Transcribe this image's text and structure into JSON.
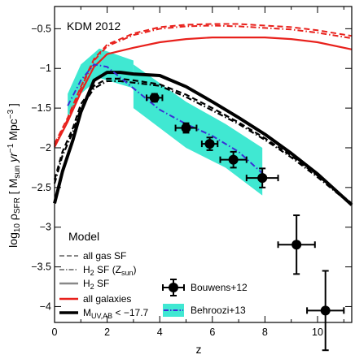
{
  "chart_data": {
    "type": "line",
    "annotation": "KDM 2012",
    "xlabel": "z",
    "ylabel": "log10 ρSFR [ Msun yr−1 Mpc−3 ]",
    "ylabel_parts": {
      "prefix": "log",
      "log_sub": "10",
      "rho": " ρ",
      "rho_sub": "SFR",
      "open": " [ M",
      "m_sub": "sun",
      "unit": " yr",
      "yr_sup": "−1",
      "mpc": " Mpc",
      "mpc_sup": "−3",
      "close": " ]"
    },
    "xlim": [
      0,
      11.3
    ],
    "ylim": [
      -4.2,
      -0.22
    ],
    "xticks": [
      0,
      2,
      4,
      6,
      8,
      10
    ],
    "xtick_labels": [
      "0",
      "2",
      "4",
      "6",
      "8",
      "10"
    ],
    "yticks": [
      -4,
      -3.5,
      -3,
      -2.5,
      -2,
      -1.5,
      -1,
      -0.5
    ],
    "ytick_labels": [
      "−4",
      "−3.5",
      "−3",
      "−2.5",
      "−2",
      "−1.5",
      "−1",
      "−0.5"
    ],
    "colors": {
      "all_galaxies": "#e8211c",
      "bright": "#000000",
      "behroozi_line": "#3a2fd6",
      "behroozi_band": "#40e8d2",
      "grey": "#888888"
    },
    "series": [
      {
        "group": "all galaxies",
        "model": "all gas SF",
        "style": "dashed",
        "x": [
          0,
          0.5,
          1,
          1.5,
          2,
          3,
          4,
          5,
          6,
          7,
          8,
          9,
          10,
          11.3
        ],
        "y": [
          -1.95,
          -1.62,
          -1.23,
          -0.88,
          -0.7,
          -0.56,
          -0.48,
          -0.45,
          -0.44,
          -0.44,
          -0.46,
          -0.48,
          -0.52,
          -0.59
        ]
      },
      {
        "group": "all galaxies",
        "model": "H2 SF (Zsun)",
        "style": "dashdot",
        "x": [
          0,
          0.5,
          1,
          1.5,
          2,
          3,
          4,
          5,
          6,
          7,
          8,
          9,
          10,
          11.3
        ],
        "y": [
          -1.97,
          -1.64,
          -1.25,
          -0.9,
          -0.72,
          -0.58,
          -0.5,
          -0.47,
          -0.46,
          -0.47,
          -0.49,
          -0.51,
          -0.55,
          -0.62
        ]
      },
      {
        "group": "all galaxies",
        "model": "H2 SF",
        "style": "solid",
        "x": [
          0,
          0.5,
          1,
          1.5,
          2,
          3,
          4,
          5,
          6,
          7,
          8,
          9,
          10,
          11.3
        ],
        "y": [
          -1.99,
          -1.67,
          -1.3,
          -0.98,
          -0.82,
          -0.74,
          -0.67,
          -0.63,
          -0.61,
          -0.61,
          -0.61,
          -0.63,
          -0.67,
          -0.76
        ]
      },
      {
        "group": "MUV,AB < -17.7",
        "model": "all gas SF",
        "style": "dashed",
        "x": [
          0,
          0.3,
          0.7,
          1,
          1.5,
          2,
          2.5,
          3,
          4,
          5,
          6,
          7,
          8,
          9,
          10,
          11.3
        ],
        "y": [
          -2.4,
          -2.05,
          -1.75,
          -1.45,
          -1.22,
          -1.13,
          -1.13,
          -1.15,
          -1.2,
          -1.33,
          -1.5,
          -1.68,
          -1.88,
          -2.1,
          -2.35,
          -2.7
        ]
      },
      {
        "group": "MUV,AB < -17.7",
        "model": "H2 SF (Zsun)",
        "style": "dashdot",
        "x": [
          0,
          0.3,
          0.7,
          1,
          1.5,
          2,
          2.5,
          3,
          4,
          5,
          6,
          7,
          8,
          9,
          10,
          11.3
        ],
        "y": [
          -2.45,
          -2.1,
          -1.8,
          -1.5,
          -1.25,
          -1.16,
          -1.16,
          -1.18,
          -1.22,
          -1.36,
          -1.53,
          -1.7,
          -1.9,
          -2.12,
          -2.37,
          -2.72
        ]
      },
      {
        "group": "MUV,AB < -17.7",
        "model": "H2 SF",
        "style": "solid",
        "x": [
          0,
          0.3,
          0.7,
          1,
          1.5,
          2,
          2.5,
          3,
          4,
          5,
          6,
          7,
          8,
          9,
          10,
          11.3
        ],
        "y": [
          -2.7,
          -2.3,
          -1.9,
          -1.55,
          -1.15,
          -1.05,
          -1.05,
          -1.07,
          -1.09,
          -1.23,
          -1.42,
          -1.62,
          -1.83,
          -2.07,
          -2.33,
          -2.72
        ]
      }
    ],
    "behroozi": {
      "name": "Behroozi+13",
      "x": [
        0.5,
        1,
        1.5,
        2,
        3,
        4,
        5,
        6,
        7,
        8
      ],
      "y": [
        -1.47,
        -1.15,
        -0.95,
        -0.98,
        -1.25,
        -1.52,
        -1.7,
        -1.85,
        -2.05,
        -2.35
      ],
      "band": [
        {
          "x": 0.5,
          "lo": -1.62,
          "hi": -1.32
        },
        {
          "x": 1.0,
          "lo": -1.32,
          "hi": -0.95
        },
        {
          "x": 1.7,
          "lo": -1.12,
          "hi": -0.75
        },
        {
          "x": 3.0,
          "lo": -1.25,
          "hi": -0.9
        },
        {
          "x": 3.0,
          "lo": -1.5,
          "hi": -0.95
        },
        {
          "x": 5.0,
          "lo": -2.0,
          "hi": -1.42
        },
        {
          "x": 6.5,
          "lo": -2.25,
          "hi": -1.7
        },
        {
          "x": 7.9,
          "lo": -2.6,
          "hi": -2.0
        }
      ]
    },
    "bouwens": {
      "name": "Bouwens+12",
      "points": [
        {
          "x": 3.8,
          "y": -1.37,
          "xerr": 0.3,
          "yerr": 0.05
        },
        {
          "x": 5.0,
          "y": -1.75,
          "xerr": 0.4,
          "yerr": 0.06
        },
        {
          "x": 5.9,
          "y": -1.95,
          "xerr": 0.3,
          "yerr": 0.08
        },
        {
          "x": 6.8,
          "y": -2.15,
          "xerr": 0.5,
          "yerr": 0.1
        },
        {
          "x": 7.9,
          "y": -2.38,
          "xerr": 0.6,
          "yerr": 0.12
        },
        {
          "x": 9.2,
          "y": -3.22,
          "xerr": 0.7,
          "yerr": 0.37
        },
        {
          "x": 10.3,
          "y": -4.05,
          "xerr": 0.7,
          "yerr": 0.5
        }
      ]
    },
    "legend": {
      "position": "bottom-left",
      "heading": "Model",
      "all_gas": "all gas SF",
      "h2_zsun": {
        "main": "H",
        "sub": "2",
        "rest": " SF (Z",
        "z_sub": "sun",
        "close": ")"
      },
      "h2": {
        "main": "H",
        "sub": "2",
        "rest": " SF"
      },
      "all_galaxies": "all galaxies",
      "muv": {
        "m": "M",
        "sub": "UV,AB",
        "rest": " < −17.7"
      },
      "bouwens": "Bouwens+12",
      "behroozi": "Behroozi+13"
    }
  }
}
